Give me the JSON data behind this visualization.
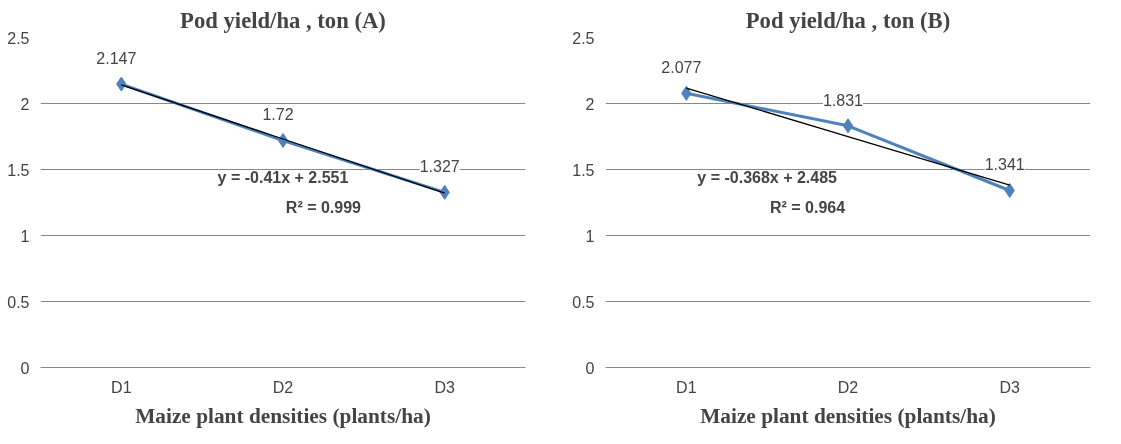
{
  "chart_data": [
    {
      "type": "line",
      "title": "Pod yield/ha , ton (A)",
      "xlabel": "Maize plant densities (plants/ha)",
      "categories": [
        "D1",
        "D2",
        "D3"
      ],
      "ylim": [
        0,
        2.5
      ],
      "yticks": [
        0,
        0.5,
        1,
        1.5,
        2,
        2.5
      ],
      "grid": "y",
      "series": [
        {
          "color": "#4f81bd",
          "values": [
            2.147,
            1.72,
            1.327
          ],
          "value_labels": [
            "2.147",
            "1.72",
            "1.327"
          ],
          "marker": "diamond"
        },
        {
          "color": "#000000",
          "values": [
            2.141,
            1.731,
            1.321
          ],
          "marker": "none"
        }
      ],
      "annotations": [
        "y = -0.41x + 2.551",
        "R² = 0.999"
      ]
    },
    {
      "type": "line",
      "title": "Pod yield/ha , ton (B)",
      "xlabel": "Maize plant densities (plants/ha)",
      "categories": [
        "D1",
        "D2",
        "D3"
      ],
      "ylim": [
        0,
        2.5
      ],
      "yticks": [
        0,
        0.5,
        1,
        1.5,
        2,
        2.5
      ],
      "grid": "y",
      "series": [
        {
          "color": "#4f81bd",
          "values": [
            2.077,
            1.831,
            1.341
          ],
          "value_labels": [
            "2.077",
            "1.831",
            "1.341"
          ],
          "marker": "diamond"
        },
        {
          "color": "#000000",
          "values": [
            2.117,
            1.749,
            1.381
          ],
          "marker": "none"
        }
      ],
      "annotations": [
        "y = -0.368x + 2.485",
        "R² = 0.964"
      ]
    }
  ]
}
